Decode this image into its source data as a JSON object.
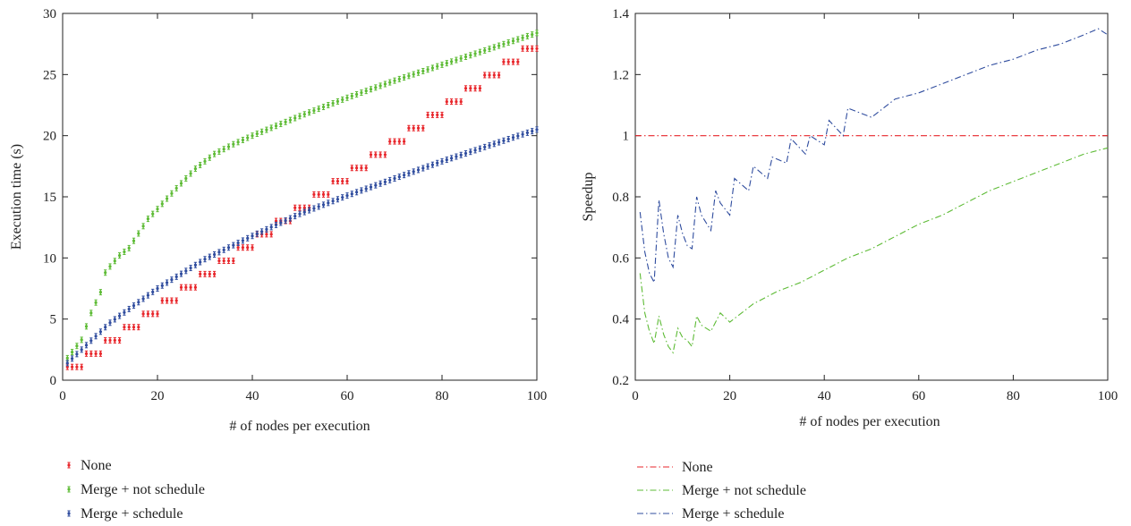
{
  "chart_data": [
    {
      "type": "scatter",
      "title": "",
      "xlabel": "# of nodes per execution",
      "ylabel": "Execution time (s)",
      "xlim": [
        0,
        100
      ],
      "ylim": [
        0,
        30
      ],
      "xticks": [
        0,
        20,
        40,
        60,
        80,
        100
      ],
      "yticks": [
        0,
        5,
        10,
        15,
        20,
        25,
        30
      ],
      "grid": false,
      "legend_position": "bottom",
      "series": [
        {
          "name": "None",
          "color": "#e8262b",
          "marker": "errorbar",
          "step": 4,
          "step_value": 1.085,
          "x_range": [
            1,
            100
          ]
        },
        {
          "name": "Merge + not schedule",
          "color": "#5dbb35",
          "marker": "errorbar",
          "x": [
            1,
            4,
            6,
            8,
            9,
            10,
            12,
            14,
            16,
            18,
            20,
            24,
            28,
            32,
            36,
            40,
            50,
            60,
            70,
            80,
            90,
            100
          ],
          "y": [
            1.8,
            3.3,
            5.5,
            7.2,
            8.8,
            9.3,
            10.2,
            10.8,
            12.0,
            13.2,
            14.0,
            15.7,
            17.3,
            18.5,
            19.3,
            20.0,
            21.6,
            23.1,
            24.5,
            25.8,
            27.1,
            28.4
          ]
        },
        {
          "name": "Merge + schedule",
          "color": "#2f4c9e",
          "marker": "errorbar",
          "x": [
            1,
            10,
            20,
            30,
            40,
            50,
            60,
            70,
            80,
            90,
            100
          ],
          "y": [
            1.4,
            4.7,
            7.5,
            9.9,
            11.8,
            13.6,
            15.1,
            16.5,
            17.9,
            19.2,
            20.5
          ]
        }
      ]
    },
    {
      "type": "line",
      "title": "",
      "xlabel": "# of nodes per execution",
      "ylabel": "Speedup",
      "xlim": [
        0,
        100
      ],
      "ylim": [
        0.2,
        1.4
      ],
      "xticks": [
        0,
        20,
        40,
        60,
        80,
        100
      ],
      "yticks": [
        0.2,
        0.4,
        0.6,
        0.8,
        1,
        1.2,
        1.4
      ],
      "grid": false,
      "legend_position": "bottom",
      "series": [
        {
          "name": "None",
          "color": "#e8262b",
          "line_style": "dash-dot",
          "x": [
            0,
            100
          ],
          "y": [
            1,
            1
          ]
        },
        {
          "name": "Merge + not schedule",
          "color": "#5dbb35",
          "line_style": "dash-dot",
          "x": [
            1,
            2,
            3,
            4,
            5,
            6,
            7,
            8,
            9,
            10,
            11,
            12,
            13,
            14,
            16,
            18,
            20,
            25,
            30,
            35,
            40,
            45,
            50,
            55,
            60,
            65,
            70,
            75,
            80,
            85,
            90,
            95,
            100
          ],
          "y": [
            0.55,
            0.42,
            0.36,
            0.32,
            0.41,
            0.35,
            0.31,
            0.29,
            0.37,
            0.34,
            0.33,
            0.31,
            0.41,
            0.38,
            0.36,
            0.42,
            0.39,
            0.45,
            0.49,
            0.52,
            0.56,
            0.6,
            0.63,
            0.67,
            0.71,
            0.74,
            0.78,
            0.82,
            0.85,
            0.88,
            0.91,
            0.94,
            0.96
          ]
        },
        {
          "name": "Merge + schedule",
          "color": "#2f4c9e",
          "line_style": "dash-dot",
          "x": [
            1,
            2,
            3,
            4,
            5,
            6,
            7,
            8,
            9,
            10,
            11,
            12,
            13,
            14,
            16,
            17,
            18,
            20,
            21,
            24,
            25,
            28,
            29,
            32,
            33,
            36,
            37,
            40,
            41,
            44,
            45,
            50,
            55,
            60,
            65,
            70,
            75,
            80,
            85,
            90,
            95,
            98,
            100
          ],
          "y": [
            0.75,
            0.62,
            0.55,
            0.52,
            0.79,
            0.68,
            0.6,
            0.57,
            0.74,
            0.68,
            0.64,
            0.63,
            0.8,
            0.74,
            0.69,
            0.82,
            0.78,
            0.74,
            0.86,
            0.82,
            0.9,
            0.86,
            0.93,
            0.91,
            0.99,
            0.94,
            1.0,
            0.97,
            1.05,
            1.0,
            1.09,
            1.06,
            1.12,
            1.14,
            1.17,
            1.2,
            1.23,
            1.25,
            1.28,
            1.3,
            1.33,
            1.35,
            1.33
          ]
        }
      ]
    }
  ]
}
